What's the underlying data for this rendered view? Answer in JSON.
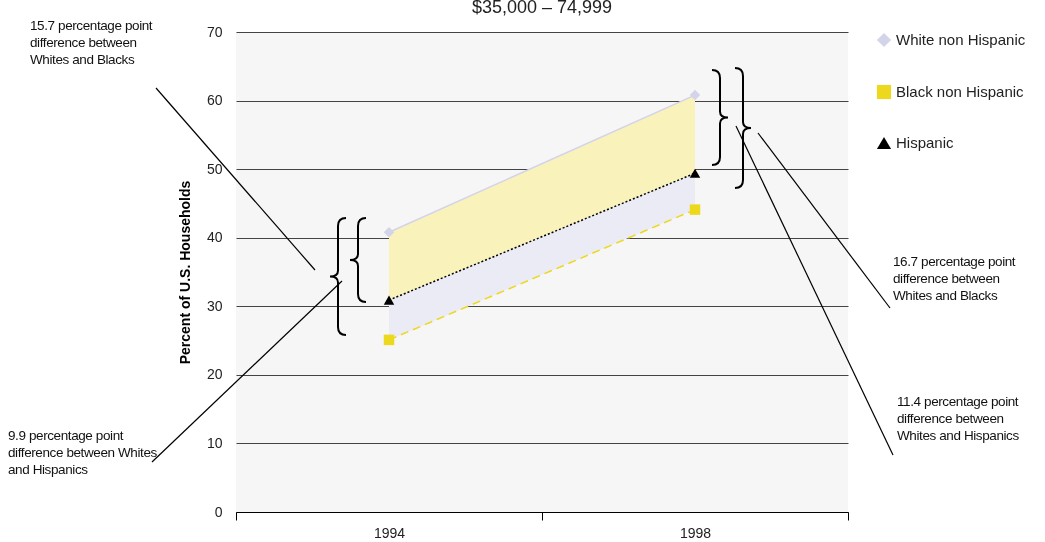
{
  "chart_data": {
    "type": "line",
    "title": "$35,000 – 74,999",
    "ylabel": "Percent of U.S. Households",
    "categories": [
      "1994",
      "1998"
    ],
    "series": [
      {
        "name": "White non Hispanic",
        "color": "#d3d3ea",
        "values": [
          40.8,
          60.8
        ],
        "marker": "diamond",
        "line_style": "solid"
      },
      {
        "name": "Black non Hispanic",
        "color": "#ecd81c",
        "values": [
          25.1,
          44.1
        ],
        "marker": "square",
        "line_style": "dashed"
      },
      {
        "name": "Hispanic",
        "color": "#000000",
        "values": [
          30.9,
          49.4
        ],
        "marker": "triangle",
        "line_style": "dotted",
        "lower": [
          25.1,
          44.1
        ],
        "upper": [
          40.8,
          60.8
        ]
      }
    ],
    "ylim": [
      0,
      70
    ],
    "yticks": [
      0,
      10,
      20,
      30,
      40,
      50,
      60,
      70
    ],
    "grid": "y",
    "legend": "right",
    "annotations": [
      "15.7 percentage point difference between Whites and Blacks",
      "9.9 percentage point difference between Whites and Hispanics",
      "16.7 percentage point difference between Whites and Blacks",
      "11.4 percentage point difference between Whites and Hispanics"
    ]
  }
}
